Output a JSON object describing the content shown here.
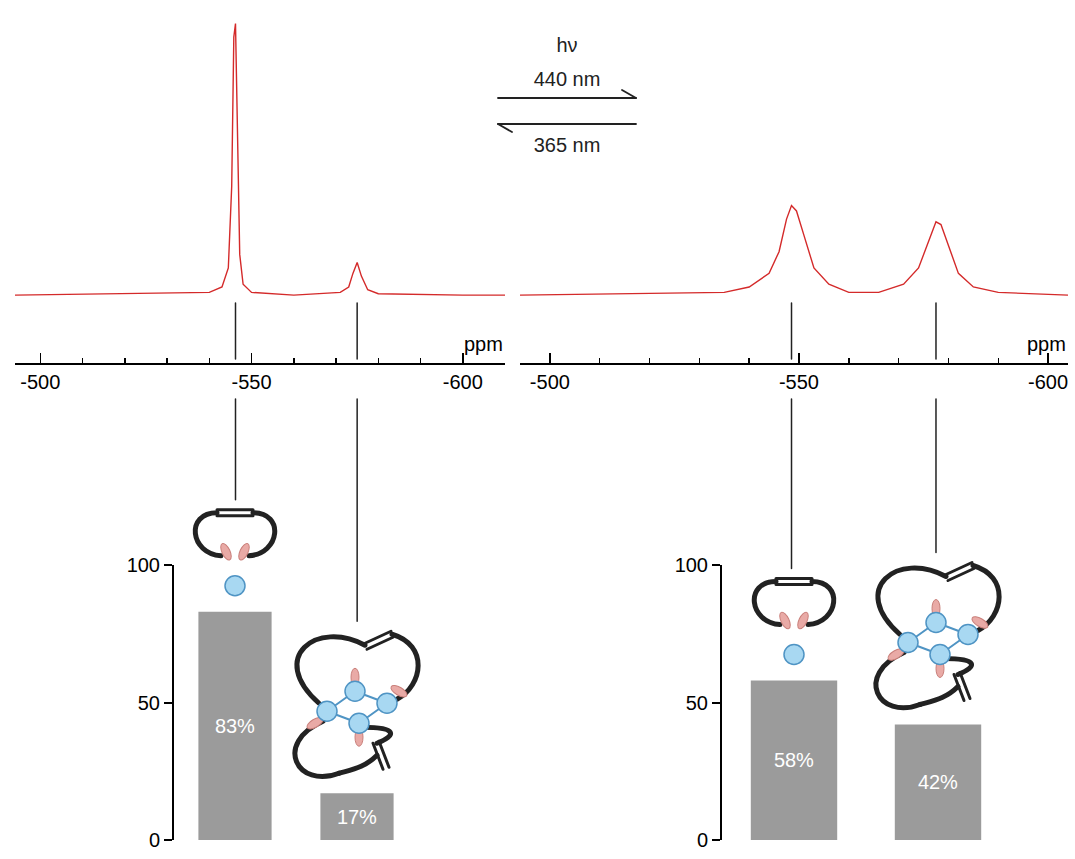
{
  "chart_data": [
    {
      "type": "line",
      "x_label": "ppm",
      "x": [
        -494,
        -520,
        -540,
        -543,
        -544.5,
        -545.3,
        -545.8,
        -546.2,
        -546.6,
        -547.2,
        -548,
        -550,
        -560,
        -571,
        -573,
        -574,
        -575,
        -576,
        -577.5,
        -580,
        -600,
        -610
      ],
      "series": [
        {
          "color": "#d42a2a",
          "values": [
            0,
            0.5,
            1,
            3,
            10,
            40,
            95,
            100,
            60,
            15,
            4,
            1,
            0,
            1,
            3,
            8,
            12,
            7,
            2,
            0.5,
            0,
            0
          ]
        }
      ],
      "xlim": [
        -494,
        -610
      ],
      "xticks": [
        -500,
        -550,
        -600
      ],
      "ylim": [
        -25,
        105
      ],
      "tick_labels": "x"
    },
    {
      "type": "line",
      "x_label": "ppm",
      "x": [
        -494,
        -520,
        -535,
        -540,
        -544,
        -546,
        -547.5,
        -548.5,
        -549.5,
        -551,
        -553,
        -556,
        -560,
        -566,
        -571,
        -574,
        -576,
        -577.5,
        -578.5,
        -580,
        -582,
        -585,
        -590,
        -604
      ],
      "series": [
        {
          "color": "#d42a2a",
          "values": [
            0,
            0.5,
            1,
            3,
            8,
            16,
            28,
            33,
            31,
            22,
            10,
            4,
            1,
            1,
            4,
            10,
            20,
            27,
            26,
            18,
            8,
            3,
            1,
            0
          ]
        }
      ],
      "xlim": [
        -494,
        -604
      ],
      "xticks": [
        -500,
        -550,
        -600
      ],
      "ylim": [
        -25,
        105
      ],
      "tick_labels": "x"
    },
    {
      "type": "bar",
      "categories": [
        null,
        null
      ],
      "values": [
        83,
        17
      ],
      "value_labels": [
        "83%",
        "17%"
      ],
      "data_labels": true,
      "color": "#9b9b9b",
      "ylim": [
        0,
        100
      ],
      "yticks": [
        0,
        50,
        100
      ],
      "tick_labels": "y"
    },
    {
      "type": "bar",
      "categories": [
        null,
        null
      ],
      "values": [
        58,
        42
      ],
      "value_labels": [
        "58%",
        "42%"
      ],
      "data_labels": true,
      "color": "#9b9b9b",
      "ylim": [
        0,
        100
      ],
      "yticks": [
        0,
        50,
        100
      ],
      "tick_labels": "y"
    }
  ],
  "photoswitch": {
    "symbol": "hν",
    "forward": "440 nm",
    "backward": "365 nm"
  }
}
